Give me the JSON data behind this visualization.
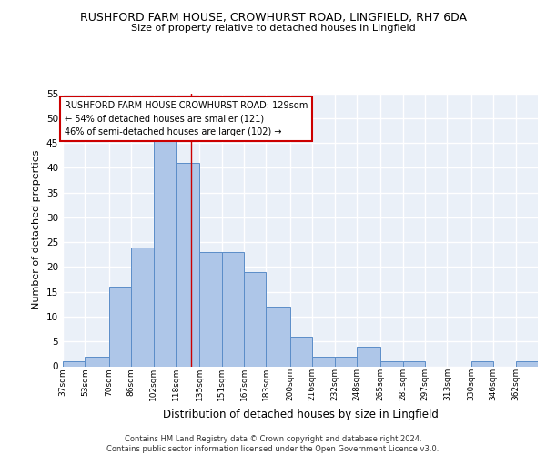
{
  "title1": "RUSHFORD FARM HOUSE, CROWHURST ROAD, LINGFIELD, RH7 6DA",
  "title2": "Size of property relative to detached houses in Lingfield",
  "xlabel": "Distribution of detached houses by size in Lingfield",
  "ylabel": "Number of detached properties",
  "bin_labels": [
    "37sqm",
    "53sqm",
    "70sqm",
    "86sqm",
    "102sqm",
    "118sqm",
    "135sqm",
    "151sqm",
    "167sqm",
    "183sqm",
    "200sqm",
    "216sqm",
    "232sqm",
    "248sqm",
    "265sqm",
    "281sqm",
    "297sqm",
    "313sqm",
    "330sqm",
    "346sqm",
    "362sqm"
  ],
  "bin_edges": [
    37,
    53,
    70,
    86,
    102,
    118,
    135,
    151,
    167,
    183,
    200,
    216,
    232,
    248,
    265,
    281,
    297,
    313,
    330,
    346,
    362,
    378
  ],
  "counts": [
    1,
    2,
    16,
    24,
    46,
    41,
    23,
    23,
    19,
    12,
    6,
    2,
    2,
    4,
    1,
    1,
    0,
    0,
    1,
    0,
    1
  ],
  "bar_color": "#aec6e8",
  "bar_edge_color": "#5b8dc8",
  "property_size": 129,
  "vline_color": "#cc0000",
  "annotation_text": "RUSHFORD FARM HOUSE CROWHURST ROAD: 129sqm\n← 54% of detached houses are smaller (121)\n46% of semi-detached houses are larger (102) →",
  "annotation_box_color": "#ffffff",
  "annotation_box_edge": "#cc0000",
  "ylim": [
    0,
    55
  ],
  "yticks": [
    0,
    5,
    10,
    15,
    20,
    25,
    30,
    35,
    40,
    45,
    50,
    55
  ],
  "bg_color": "#eaf0f8",
  "grid_color": "#ffffff",
  "footer": "Contains HM Land Registry data © Crown copyright and database right 2024.\nContains public sector information licensed under the Open Government Licence v3.0."
}
